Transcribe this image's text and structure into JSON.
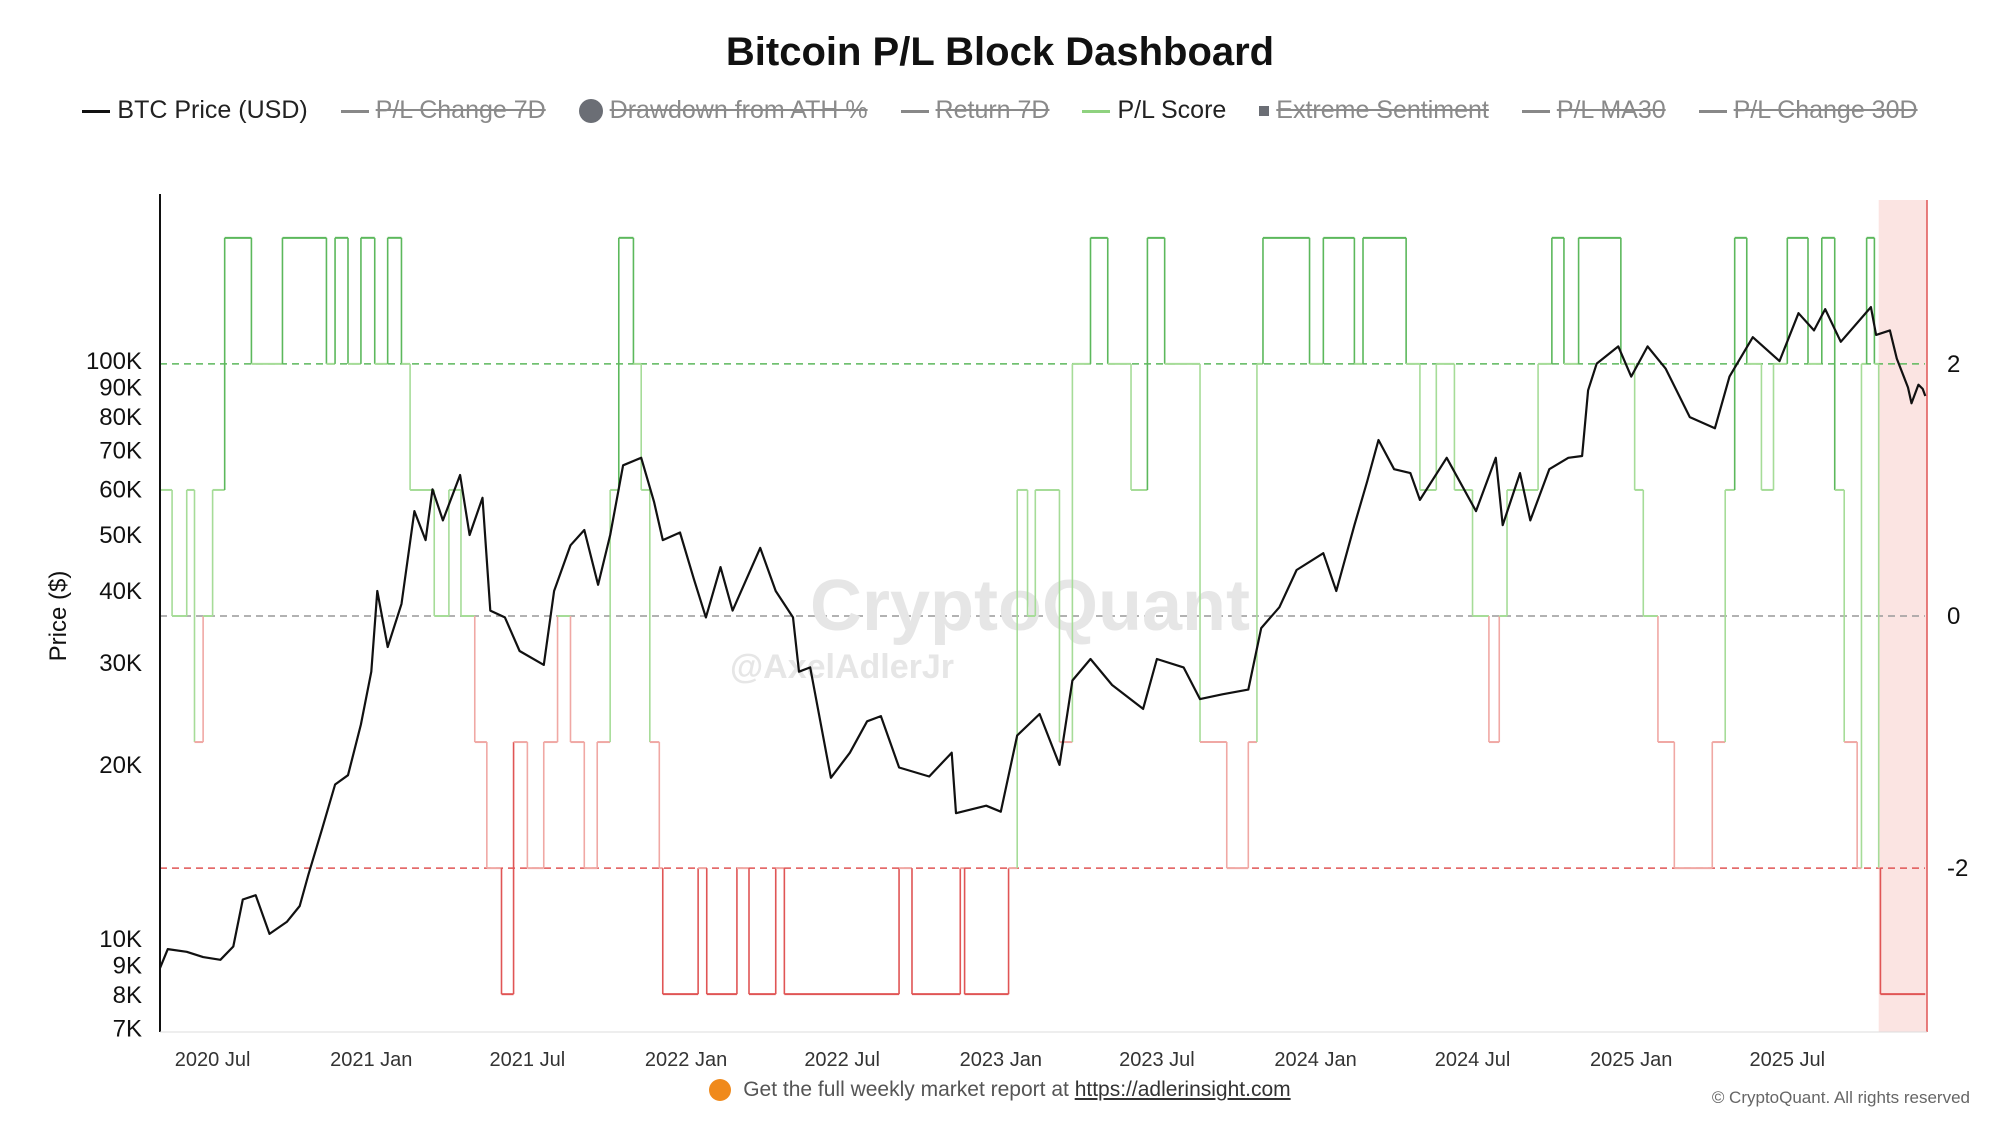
{
  "title": "Bitcoin P/L Block Dashboard",
  "legend": [
    {
      "label": "BTC Price (USD)",
      "color": "#111111",
      "marker": "line",
      "active": true
    },
    {
      "label": "P/L Change 7D",
      "color": "#888888",
      "marker": "line",
      "active": false
    },
    {
      "label": "Drawdown from ATH %",
      "color": "#6b6e75",
      "marker": "dot",
      "active": false
    },
    {
      "label": "Return 7D",
      "color": "#888888",
      "marker": "line",
      "active": false
    },
    {
      "label": "P/L Score",
      "color": "#8fd27f",
      "marker": "line",
      "active": true
    },
    {
      "label": "Extreme Sentiment",
      "color": "#6b6e75",
      "marker": "square",
      "active": false
    },
    {
      "label": "P/L MA30",
      "color": "#888888",
      "marker": "line",
      "active": false
    },
    {
      "label": "P/L Change 30D",
      "color": "#888888",
      "marker": "line",
      "active": false
    }
  ],
  "watermark": {
    "brand": "CryptoQuant",
    "handle": "@AxelAdlerJr"
  },
  "footer": {
    "text": "Get the full weekly market report at",
    "link": "https://adlerinsight.com"
  },
  "copyright": "© CryptoQuant. All rights reserved",
  "colors": {
    "price": "#111111",
    "score_pos_strong": "#5cb85c",
    "score_pos": "#a6dc98",
    "score_neg": "#f0a8a4",
    "score_neg_strong": "#e05555",
    "ref_pos": "#5cb85c",
    "ref_zero": "#999999",
    "ref_neg": "#e05555",
    "highlight": "#fbe4e2",
    "highlight_edge": "#e05555"
  },
  "chart_data": {
    "type": "line",
    "x_range": [
      "2020-05-01",
      "2025-12-10"
    ],
    "x_ticks": [
      {
        "date": "2020-07-01",
        "label": "2020 Jul"
      },
      {
        "date": "2021-01-01",
        "label": "2021 Jan"
      },
      {
        "date": "2021-07-01",
        "label": "2021 Jul"
      },
      {
        "date": "2022-01-01",
        "label": "2022 Jan"
      },
      {
        "date": "2022-07-01",
        "label": "2022 Jul"
      },
      {
        "date": "2023-01-01",
        "label": "2023 Jan"
      },
      {
        "date": "2023-07-01",
        "label": "2023 Jul"
      },
      {
        "date": "2024-01-01",
        "label": "2024 Jan"
      },
      {
        "date": "2024-07-01",
        "label": "2024 Jul"
      },
      {
        "date": "2025-01-01",
        "label": "2025 Jan"
      },
      {
        "date": "2025-07-01",
        "label": "2025 Jul"
      }
    ],
    "y_left": {
      "label": "Price ($)",
      "scale": "log",
      "range": [
        6900,
        190000
      ],
      "ticks": [
        {
          "value": 7000,
          "label": "7K"
        },
        {
          "value": 8000,
          "label": "8K"
        },
        {
          "value": 9000,
          "label": "9K"
        },
        {
          "value": 10000,
          "label": "10K"
        },
        {
          "value": 20000,
          "label": "20K"
        },
        {
          "value": 30000,
          "label": "30K"
        },
        {
          "value": 40000,
          "label": "40K"
        },
        {
          "value": 50000,
          "label": "50K"
        },
        {
          "value": 60000,
          "label": "60K"
        },
        {
          "value": 70000,
          "label": "70K"
        },
        {
          "value": 80000,
          "label": "80K"
        },
        {
          "value": 90000,
          "label": "90K"
        },
        {
          "value": 100000,
          "label": "100K"
        }
      ]
    },
    "y_right": {
      "label": "",
      "range": [
        -3.3,
        3.3
      ],
      "ticks": [
        {
          "value": 2,
          "label": "2"
        },
        {
          "value": 0,
          "label": "0"
        },
        {
          "value": -2,
          "label": "-2"
        }
      ]
    },
    "reference_lines": [
      {
        "value": 2,
        "axis": "right",
        "style": "dashed",
        "color_key": "ref_pos"
      },
      {
        "value": 0,
        "axis": "right",
        "style": "dashed",
        "color_key": "ref_zero"
      },
      {
        "value": -2,
        "axis": "right",
        "style": "dashed",
        "color_key": "ref_neg"
      }
    ],
    "highlight_region": {
      "start": "2025-10-15",
      "end": "2025-12-10"
    },
    "series": [
      {
        "name": "BTC Price (USD)",
        "axis": "left",
        "points": [
          [
            "2020-05-01",
            8900
          ],
          [
            "2020-05-10",
            9600
          ],
          [
            "2020-06-01",
            9500
          ],
          [
            "2020-06-20",
            9300
          ],
          [
            "2020-07-10",
            9200
          ],
          [
            "2020-07-25",
            9700
          ],
          [
            "2020-08-05",
            11700
          ],
          [
            "2020-08-20",
            11900
          ],
          [
            "2020-09-05",
            10200
          ],
          [
            "2020-09-25",
            10700
          ],
          [
            "2020-10-10",
            11400
          ],
          [
            "2020-10-20",
            12900
          ],
          [
            "2020-11-05",
            15500
          ],
          [
            "2020-11-20",
            18500
          ],
          [
            "2020-12-05",
            19200
          ],
          [
            "2020-12-20",
            23500
          ],
          [
            "2021-01-01",
            29000
          ],
          [
            "2021-01-08",
            40000
          ],
          [
            "2021-01-20",
            32000
          ],
          [
            "2021-02-05",
            38000
          ],
          [
            "2021-02-20",
            55000
          ],
          [
            "2021-03-05",
            49000
          ],
          [
            "2021-03-13",
            60000
          ],
          [
            "2021-03-25",
            53000
          ],
          [
            "2021-04-14",
            63500
          ],
          [
            "2021-04-25",
            50000
          ],
          [
            "2021-05-10",
            58000
          ],
          [
            "2021-05-19",
            37000
          ],
          [
            "2021-06-05",
            36000
          ],
          [
            "2021-06-22",
            31500
          ],
          [
            "2021-07-20",
            29800
          ],
          [
            "2021-08-01",
            40000
          ],
          [
            "2021-08-20",
            48000
          ],
          [
            "2021-09-05",
            51000
          ],
          [
            "2021-09-21",
            41000
          ],
          [
            "2021-10-05",
            50000
          ],
          [
            "2021-10-20",
            66000
          ],
          [
            "2021-11-10",
            68000
          ],
          [
            "2021-11-25",
            57000
          ],
          [
            "2021-12-05",
            49000
          ],
          [
            "2021-12-25",
            50500
          ],
          [
            "2022-01-10",
            42000
          ],
          [
            "2022-01-24",
            36000
          ],
          [
            "2022-02-10",
            44000
          ],
          [
            "2022-02-24",
            37000
          ],
          [
            "2022-03-28",
            47500
          ],
          [
            "2022-04-15",
            40000
          ],
          [
            "2022-05-05",
            36000
          ],
          [
            "2022-05-12",
            29000
          ],
          [
            "2022-05-25",
            29500
          ],
          [
            "2022-06-18",
            19000
          ],
          [
            "2022-07-10",
            21000
          ],
          [
            "2022-07-30",
            23800
          ],
          [
            "2022-08-15",
            24300
          ],
          [
            "2022-09-05",
            19800
          ],
          [
            "2022-10-10",
            19100
          ],
          [
            "2022-11-05",
            21000
          ],
          [
            "2022-11-10",
            16500
          ],
          [
            "2022-12-15",
            17000
          ],
          [
            "2023-01-01",
            16600
          ],
          [
            "2023-01-20",
            22500
          ],
          [
            "2023-02-15",
            24500
          ],
          [
            "2023-03-10",
            20000
          ],
          [
            "2023-03-25",
            28000
          ],
          [
            "2023-04-15",
            30500
          ],
          [
            "2023-05-10",
            27500
          ],
          [
            "2023-06-15",
            25000
          ],
          [
            "2023-07-01",
            30500
          ],
          [
            "2023-08-01",
            29500
          ],
          [
            "2023-08-20",
            26000
          ],
          [
            "2023-09-15",
            26500
          ],
          [
            "2023-10-15",
            27000
          ],
          [
            "2023-10-30",
            34500
          ],
          [
            "2023-11-20",
            37500
          ],
          [
            "2023-12-10",
            43500
          ],
          [
            "2024-01-10",
            46500
          ],
          [
            "2024-01-25",
            40000
          ],
          [
            "2024-02-15",
            52000
          ],
          [
            "2024-03-01",
            62000
          ],
          [
            "2024-03-14",
            73000
          ],
          [
            "2024-04-01",
            65000
          ],
          [
            "2024-04-20",
            64000
          ],
          [
            "2024-05-01",
            57500
          ],
          [
            "2024-06-01",
            68000
          ],
          [
            "2024-07-05",
            55000
          ],
          [
            "2024-07-28",
            68000
          ],
          [
            "2024-08-05",
            52000
          ],
          [
            "2024-08-25",
            64000
          ],
          [
            "2024-09-06",
            53000
          ],
          [
            "2024-09-28",
            65000
          ],
          [
            "2024-10-20",
            68000
          ],
          [
            "2024-11-05",
            68500
          ],
          [
            "2024-11-12",
            89000
          ],
          [
            "2024-11-22",
            99000
          ],
          [
            "2024-12-17",
            106000
          ],
          [
            "2025-01-01",
            94000
          ],
          [
            "2025-01-20",
            106000
          ],
          [
            "2025-02-10",
            97000
          ],
          [
            "2025-03-10",
            80000
          ],
          [
            "2025-04-08",
            76500
          ],
          [
            "2025-04-25",
            94000
          ],
          [
            "2025-05-22",
            110000
          ],
          [
            "2025-06-22",
            100000
          ],
          [
            "2025-07-14",
            121000
          ],
          [
            "2025-08-01",
            113000
          ],
          [
            "2025-08-14",
            123000
          ],
          [
            "2025-09-01",
            108000
          ],
          [
            "2025-10-06",
            124000
          ],
          [
            "2025-10-12",
            111000
          ],
          [
            "2025-10-28",
            113000
          ],
          [
            "2025-11-05",
            101000
          ],
          [
            "2025-11-18",
            90000
          ],
          [
            "2025-11-22",
            84500
          ],
          [
            "2025-11-30",
            91000
          ],
          [
            "2025-12-05",
            89500
          ],
          [
            "2025-12-08",
            87000
          ]
        ]
      },
      {
        "name": "P/L Score",
        "axis": "right",
        "type": "step",
        "points": [
          [
            "2020-05-01",
            1
          ],
          [
            "2020-05-15",
            0
          ],
          [
            "2020-06-01",
            1
          ],
          [
            "2020-06-10",
            -1
          ],
          [
            "2020-06-20",
            0
          ],
          [
            "2020-07-01",
            1
          ],
          [
            "2020-07-15",
            3
          ],
          [
            "2020-08-15",
            2
          ],
          [
            "2020-09-20",
            3
          ],
          [
            "2020-11-10",
            2
          ],
          [
            "2020-11-20",
            3
          ],
          [
            "2020-12-05",
            2
          ],
          [
            "2020-12-20",
            3
          ],
          [
            "2021-01-05",
            2
          ],
          [
            "2021-01-20",
            3
          ],
          [
            "2021-02-05",
            2
          ],
          [
            "2021-02-15",
            1
          ],
          [
            "2021-03-15",
            0
          ],
          [
            "2021-04-01",
            1
          ],
          [
            "2021-04-15",
            0
          ],
          [
            "2021-05-01",
            -1
          ],
          [
            "2021-05-15",
            -2
          ],
          [
            "2021-06-01",
            -3
          ],
          [
            "2021-06-15",
            -1
          ],
          [
            "2021-07-01",
            -2
          ],
          [
            "2021-07-20",
            -1
          ],
          [
            "2021-08-05",
            0
          ],
          [
            "2021-08-20",
            -1
          ],
          [
            "2021-09-05",
            -2
          ],
          [
            "2021-09-20",
            -1
          ],
          [
            "2021-10-05",
            1
          ],
          [
            "2021-10-15",
            3
          ],
          [
            "2021-11-01",
            2
          ],
          [
            "2021-11-10",
            1
          ],
          [
            "2021-11-20",
            -1
          ],
          [
            "2021-12-01",
            -2
          ],
          [
            "2021-12-05",
            -3
          ],
          [
            "2022-01-15",
            -2
          ],
          [
            "2022-01-25",
            -3
          ],
          [
            "2022-03-01",
            -2
          ],
          [
            "2022-03-15",
            -3
          ],
          [
            "2022-04-15",
            -2
          ],
          [
            "2022-04-25",
            -3
          ],
          [
            "2022-09-05",
            -2
          ],
          [
            "2022-09-20",
            -3
          ],
          [
            "2022-11-15",
            -2
          ],
          [
            "2022-11-20",
            -3
          ],
          [
            "2023-01-10",
            -2
          ],
          [
            "2023-01-20",
            1
          ],
          [
            "2023-02-01",
            0
          ],
          [
            "2023-02-10",
            1
          ],
          [
            "2023-03-10",
            -1
          ],
          [
            "2023-03-25",
            2
          ],
          [
            "2023-04-15",
            3
          ],
          [
            "2023-05-05",
            2
          ],
          [
            "2023-06-01",
            1
          ],
          [
            "2023-06-20",
            3
          ],
          [
            "2023-07-10",
            2
          ],
          [
            "2023-08-20",
            -1
          ],
          [
            "2023-09-20",
            -2
          ],
          [
            "2023-10-15",
            -1
          ],
          [
            "2023-10-25",
            2
          ],
          [
            "2023-11-01",
            3
          ],
          [
            "2023-12-25",
            2
          ],
          [
            "2024-01-10",
            3
          ],
          [
            "2024-02-15",
            2
          ],
          [
            "2024-02-25",
            3
          ],
          [
            "2024-04-15",
            2
          ],
          [
            "2024-05-01",
            1
          ],
          [
            "2024-05-20",
            2
          ],
          [
            "2024-06-10",
            1
          ],
          [
            "2024-07-01",
            0
          ],
          [
            "2024-07-20",
            -1
          ],
          [
            "2024-08-01",
            0
          ],
          [
            "2024-08-10",
            1
          ],
          [
            "2024-09-15",
            2
          ],
          [
            "2024-10-01",
            3
          ],
          [
            "2024-10-15",
            2
          ],
          [
            "2024-11-01",
            3
          ],
          [
            "2024-12-20",
            2
          ],
          [
            "2025-01-05",
            1
          ],
          [
            "2025-01-15",
            0
          ],
          [
            "2025-02-01",
            -1
          ],
          [
            "2025-02-20",
            -2
          ],
          [
            "2025-04-05",
            -1
          ],
          [
            "2025-04-20",
            1
          ],
          [
            "2025-05-01",
            3
          ],
          [
            "2025-05-15",
            2
          ],
          [
            "2025-06-01",
            1
          ],
          [
            "2025-06-15",
            2
          ],
          [
            "2025-07-01",
            3
          ],
          [
            "2025-07-25",
            2
          ],
          [
            "2025-08-10",
            3
          ],
          [
            "2025-08-25",
            1
          ],
          [
            "2025-09-05",
            -1
          ],
          [
            "2025-09-20",
            -2
          ],
          [
            "2025-09-25",
            2
          ],
          [
            "2025-10-01",
            3
          ],
          [
            "2025-10-10",
            2
          ],
          [
            "2025-10-15",
            -2
          ],
          [
            "2025-10-17",
            -3
          ],
          [
            "2025-12-08",
            -3
          ]
        ]
      }
    ]
  }
}
